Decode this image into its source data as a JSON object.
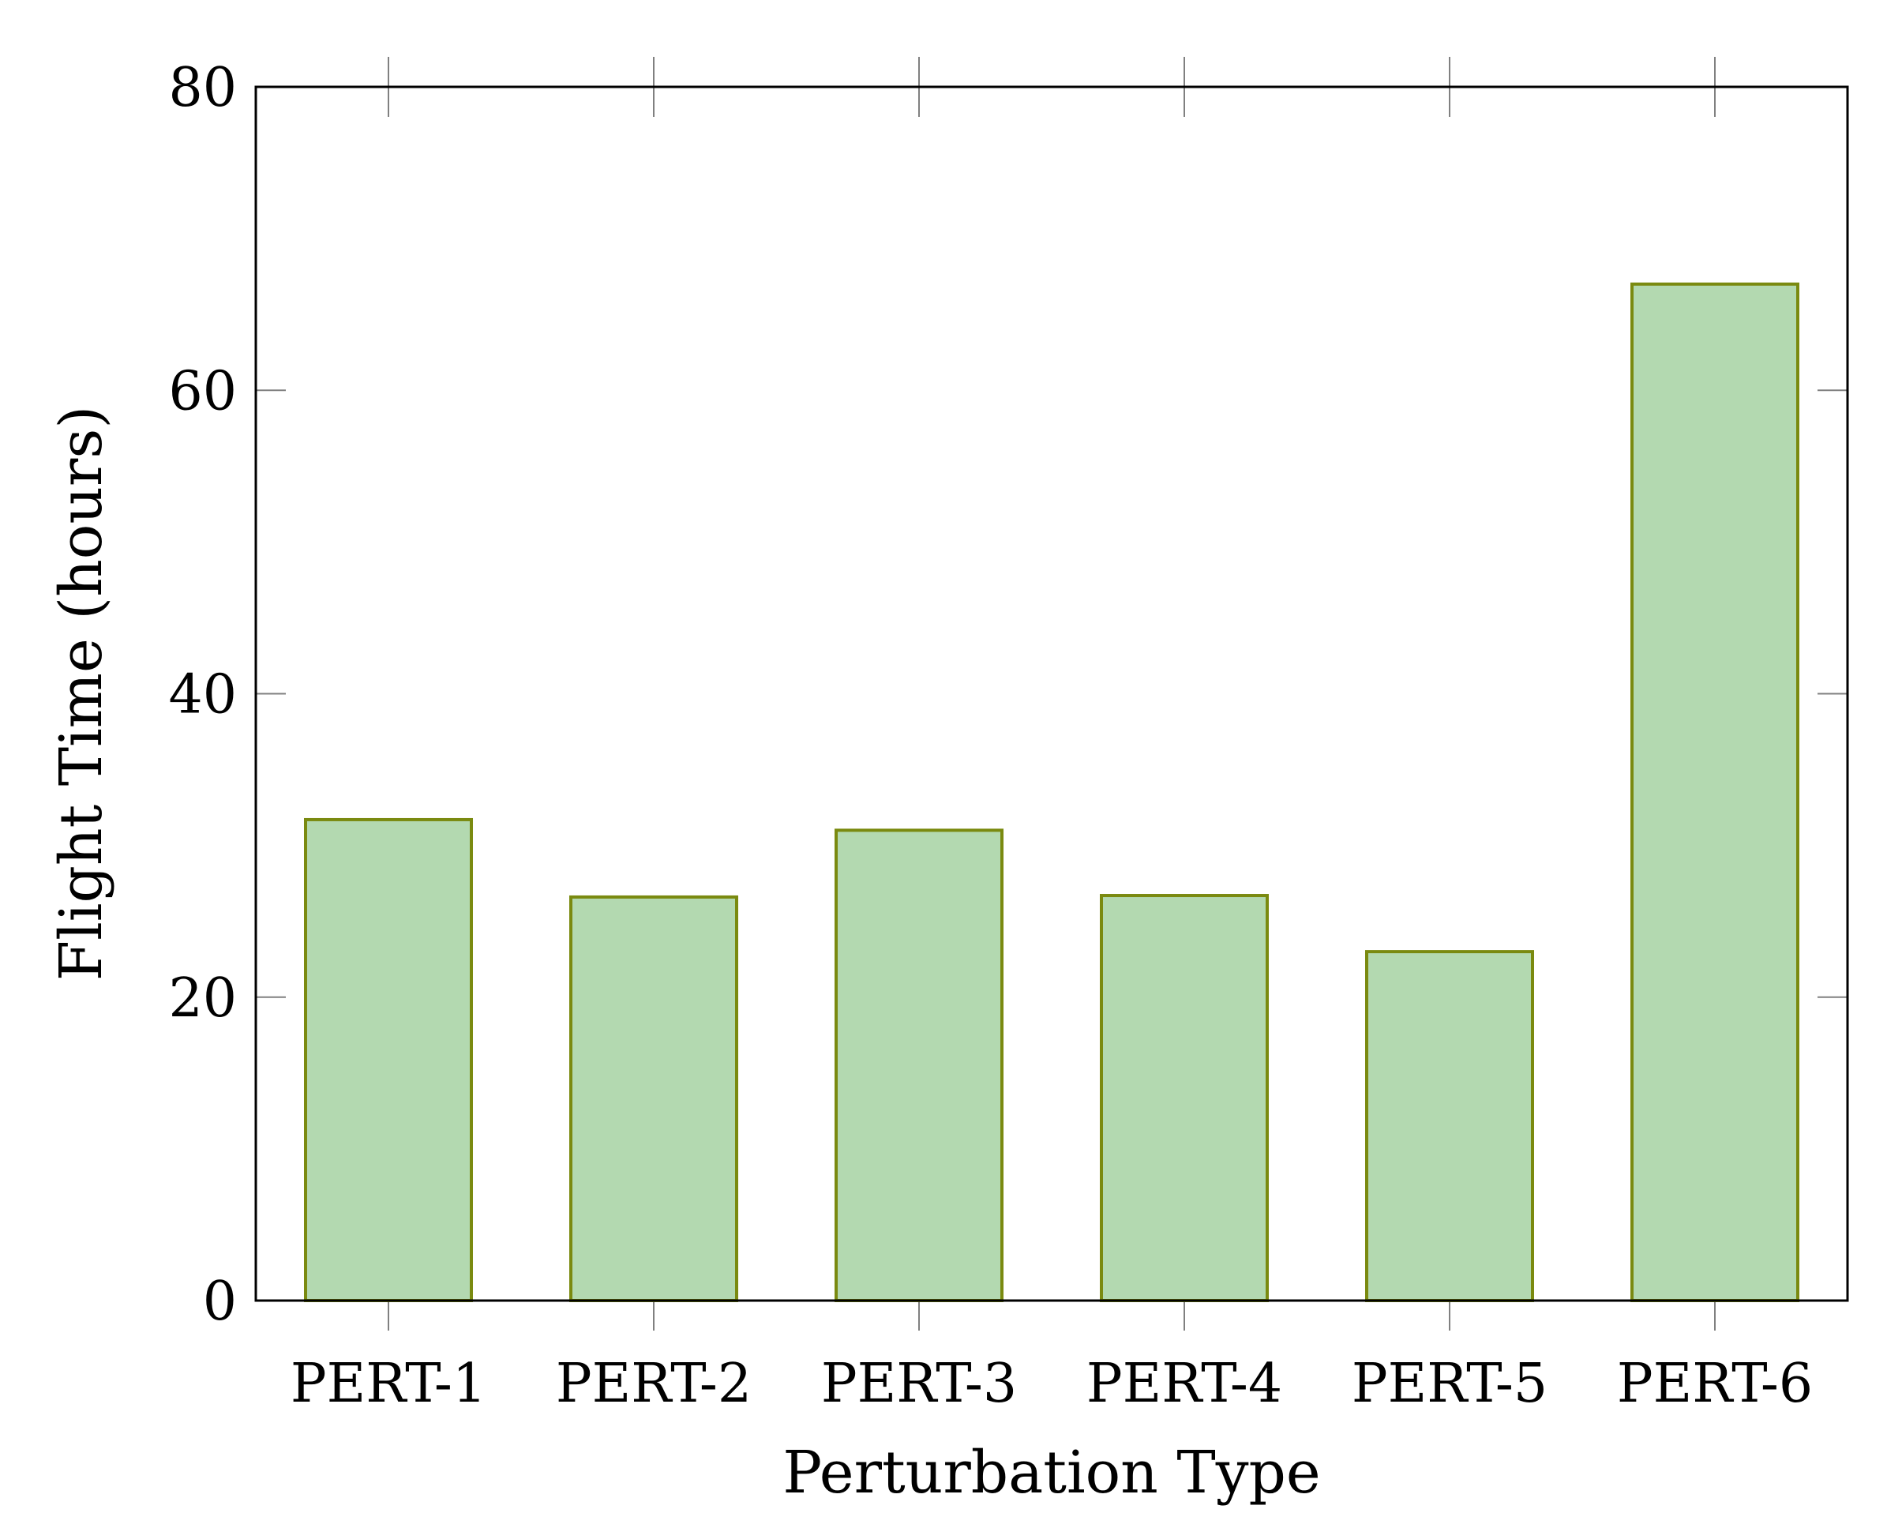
{
  "chart_data": {
    "type": "bar",
    "categories": [
      "PERT-1",
      "PERT-2",
      "PERT-3",
      "PERT-4",
      "PERT-5",
      "PERT-6"
    ],
    "values": [
      31.7,
      26.6,
      31.0,
      26.7,
      23.0,
      67.0
    ],
    "title": "",
    "xlabel": "Perturbation Type",
    "ylabel": "Flight Time (hours)",
    "ylim": [
      0,
      80
    ],
    "yticks": [
      "0",
      "20",
      "40",
      "60",
      "80"
    ],
    "grid": false,
    "legend": "none",
    "colors": {
      "bar_fill": "#b3d9b0",
      "bar_stroke": "#7a8a10",
      "axis": "#000000",
      "tick": "#808080"
    }
  }
}
